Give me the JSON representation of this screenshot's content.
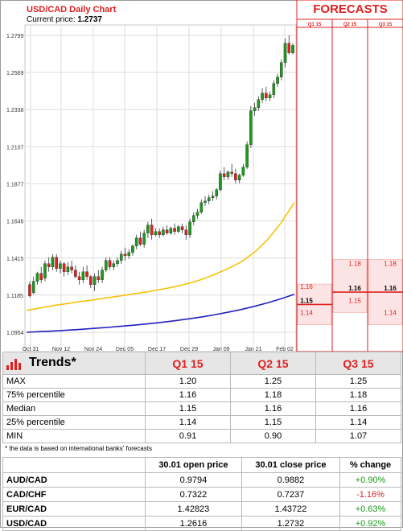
{
  "header": {
    "title": "USD/CAD Daily Chart",
    "current_price_label": "Current price:",
    "current_price_value": "1.2737"
  },
  "forecasts": {
    "title": "FORECASTS",
    "columns": [
      "Q1 15",
      "Q2 15",
      "Q3 15"
    ],
    "values": [
      {
        "q": "Q1 15",
        "labels": [
          "1.16",
          "1.15",
          "1.14"
        ],
        "levels": [
          1.16,
          1.15,
          1.14
        ],
        "median": 1.15,
        "top": 1.16,
        "bottom": 1.14
      },
      {
        "q": "Q2 15",
        "labels": [
          "1.18",
          "1.16",
          "1.15"
        ],
        "levels": [
          1.18,
          1.16,
          1.15
        ],
        "median": 1.16,
        "top": 1.18,
        "bottom": 1.15
      },
      {
        "q": "Q3 15",
        "labels": [
          "1.18",
          "1.16",
          "1.14"
        ],
        "levels": [
          1.18,
          1.16,
          1.14
        ],
        "median": 1.16,
        "top": 1.18,
        "bottom": 1.14
      }
    ]
  },
  "chart_data": {
    "type": "candlestick",
    "title": "USD/CAD Daily Chart",
    "yticks": [
      "1.2799",
      "1.2569",
      "1.2338",
      "1.2107",
      "1.1877",
      "1.1646",
      "1.1415",
      "1.1185",
      "1.0954"
    ],
    "ylim": [
      1.0954,
      1.2799
    ],
    "xticks": [
      "Oct 31",
      "Nov 12",
      "Nov 24",
      "Dec 05",
      "Dec 17",
      "Dec 29",
      "Jan 09",
      "Jan 21",
      "Feb 02"
    ],
    "grid": true,
    "candles": [
      [
        1.125,
        1.127,
        1.118,
        1.117
      ],
      [
        1.12,
        1.13,
        1.127,
        1.119
      ],
      [
        1.127,
        1.133,
        1.132,
        1.125
      ],
      [
        1.132,
        1.136,
        1.128,
        1.126
      ],
      [
        1.129,
        1.14,
        1.138,
        1.127
      ],
      [
        1.138,
        1.142,
        1.136,
        1.133
      ],
      [
        1.136,
        1.144,
        1.142,
        1.134
      ],
      [
        1.142,
        1.144,
        1.135,
        1.133
      ],
      [
        1.135,
        1.14,
        1.138,
        1.132
      ],
      [
        1.138,
        1.139,
        1.133,
        1.13
      ],
      [
        1.133,
        1.139,
        1.136,
        1.131
      ],
      [
        1.136,
        1.14,
        1.134,
        1.132
      ],
      [
        1.134,
        1.137,
        1.13,
        1.129
      ],
      [
        1.13,
        1.133,
        1.128,
        1.125
      ],
      [
        1.128,
        1.136,
        1.133,
        1.126
      ],
      [
        1.133,
        1.137,
        1.13,
        1.128
      ],
      [
        1.13,
        1.131,
        1.125,
        1.123
      ],
      [
        1.125,
        1.132,
        1.13,
        1.121
      ],
      [
        1.13,
        1.134,
        1.128,
        1.126
      ],
      [
        1.128,
        1.136,
        1.134,
        1.126
      ],
      [
        1.134,
        1.142,
        1.14,
        1.133
      ],
      [
        1.14,
        1.142,
        1.136,
        1.134
      ],
      [
        1.136,
        1.14,
        1.138,
        1.134
      ],
      [
        1.138,
        1.142,
        1.14,
        1.136
      ],
      [
        1.14,
        1.146,
        1.144,
        1.138
      ],
      [
        1.144,
        1.148,
        1.143,
        1.14
      ],
      [
        1.143,
        1.147,
        1.145,
        1.141
      ],
      [
        1.145,
        1.15,
        1.149,
        1.143
      ],
      [
        1.149,
        1.156,
        1.154,
        1.147
      ],
      [
        1.154,
        1.158,
        1.15,
        1.149
      ],
      [
        1.15,
        1.159,
        1.157,
        1.148
      ],
      [
        1.157,
        1.164,
        1.162,
        1.154
      ],
      [
        1.162,
        1.166,
        1.156,
        1.153
      ],
      [
        1.156,
        1.16,
        1.158,
        1.155
      ],
      [
        1.158,
        1.16,
        1.156,
        1.154
      ],
      [
        1.156,
        1.161,
        1.159,
        1.155
      ],
      [
        1.159,
        1.162,
        1.157,
        1.156
      ],
      [
        1.157,
        1.161,
        1.16,
        1.156
      ],
      [
        1.16,
        1.163,
        1.158,
        1.156
      ],
      [
        1.158,
        1.162,
        1.161,
        1.157
      ],
      [
        1.161,
        1.163,
        1.159,
        1.157
      ],
      [
        1.159,
        1.162,
        1.156,
        1.153
      ],
      [
        1.156,
        1.166,
        1.164,
        1.154
      ],
      [
        1.164,
        1.17,
        1.168,
        1.162
      ],
      [
        1.168,
        1.172,
        1.17,
        1.166
      ],
      [
        1.17,
        1.178,
        1.176,
        1.169
      ],
      [
        1.176,
        1.18,
        1.177,
        1.174
      ],
      [
        1.177,
        1.181,
        1.179,
        1.175
      ],
      [
        1.179,
        1.183,
        1.18,
        1.177
      ],
      [
        1.18,
        1.185,
        1.184,
        1.178
      ],
      [
        1.184,
        1.196,
        1.194,
        1.183
      ],
      [
        1.194,
        1.198,
        1.192,
        1.19
      ],
      [
        1.192,
        1.196,
        1.195,
        1.19
      ],
      [
        1.195,
        1.2,
        1.194,
        1.192
      ],
      [
        1.194,
        1.197,
        1.19,
        1.188
      ],
      [
        1.19,
        1.194,
        1.193,
        1.188
      ],
      [
        1.193,
        1.2,
        1.198,
        1.192
      ],
      [
        1.198,
        1.214,
        1.212,
        1.197
      ],
      [
        1.212,
        1.236,
        1.233,
        1.21
      ],
      [
        1.233,
        1.238,
        1.235,
        1.23
      ],
      [
        1.235,
        1.242,
        1.24,
        1.233
      ],
      [
        1.24,
        1.247,
        1.244,
        1.238
      ],
      [
        1.244,
        1.248,
        1.241,
        1.239
      ],
      [
        1.241,
        1.245,
        1.243,
        1.239
      ],
      [
        1.243,
        1.252,
        1.25,
        1.241
      ],
      [
        1.25,
        1.256,
        1.254,
        1.248
      ],
      [
        1.254,
        1.265,
        1.263,
        1.252
      ],
      [
        1.263,
        1.278,
        1.275,
        1.26
      ],
      [
        1.275,
        1.2799,
        1.269,
        1.268
      ],
      [
        1.269,
        1.275,
        1.2737,
        1.268
      ]
    ],
    "ma_fast": [
      1.109,
      1.1105,
      1.112,
      1.1132,
      1.1145,
      1.1155,
      1.1168,
      1.118,
      1.1193,
      1.1205,
      1.122,
      1.1236,
      1.1255,
      1.128,
      1.1312,
      1.1348,
      1.139,
      1.145,
      1.153,
      1.1633,
      1.176
    ],
    "ma_slow": [
      1.0954,
      1.0958,
      1.0962,
      1.0967,
      1.0972,
      1.0978,
      1.0984,
      1.0991,
      1.0998,
      1.1006,
      1.1015,
      1.1025,
      1.1036,
      1.1048,
      1.1062,
      1.1078,
      1.1095,
      1.1115,
      1.1137,
      1.1162,
      1.119
    ]
  },
  "trends": {
    "title": "Trends*",
    "columns": [
      "Q1 15",
      "Q2 15",
      "Q3 15"
    ],
    "rows": [
      {
        "label": "MAX",
        "values": [
          "1.20",
          "1.25",
          "1.25"
        ]
      },
      {
        "label": "75% percentile",
        "values": [
          "1.16",
          "1.18",
          "1.18"
        ]
      },
      {
        "label": "Median",
        "values": [
          "1.15",
          "1.16",
          "1.16"
        ]
      },
      {
        "label": "25% percentile",
        "values": [
          "1.14",
          "1.15",
          "1.14"
        ]
      },
      {
        "label": "MIN",
        "values": [
          "0.91",
          "0.90",
          "1.07"
        ]
      }
    ],
    "footnote": "* the data is based on international banks' forecasts"
  },
  "rates": {
    "columns": [
      "30.01 open price",
      "30.01 close price",
      "% change"
    ],
    "rows": [
      {
        "pair": "AUD/CAD",
        "open": "0.9794",
        "close": "0.9882",
        "change": "+0.90%",
        "dir": "pos"
      },
      {
        "pair": "CAD/CHF",
        "open": "0.7322",
        "close": "0.7237",
        "change": "-1.16%",
        "dir": "neg"
      },
      {
        "pair": "EUR/CAD",
        "open": "1.42823",
        "close": "1.43722",
        "change": "+0.63%",
        "dir": "pos"
      },
      {
        "pair": "USD/CAD",
        "open": "1.2616",
        "close": "1.2732",
        "change": "+0.92%",
        "dir": "pos"
      }
    ]
  },
  "colors": {
    "up": "#1a9a1a",
    "down": "#e02020",
    "ma_fast": "#f5c20a",
    "ma_slow": "#2020c0",
    "accent": "#e02020",
    "forecast_fill": "#fde4e4"
  }
}
